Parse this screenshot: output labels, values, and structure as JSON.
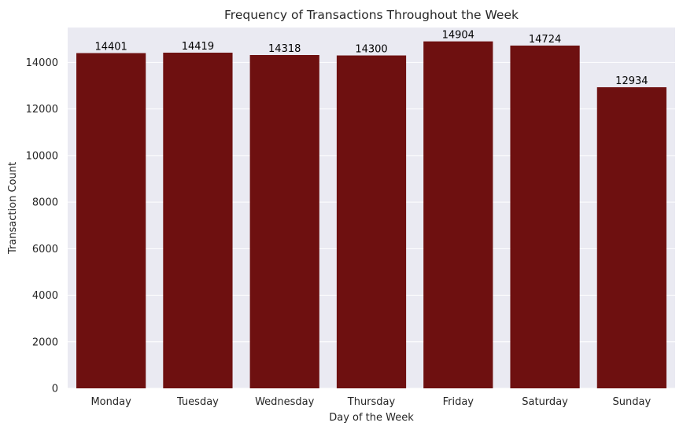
{
  "chart_data": {
    "type": "bar",
    "title": "Frequency of Transactions Throughout the Week",
    "xlabel": "Day of the Week",
    "ylabel": "Transaction Count",
    "categories": [
      "Monday",
      "Tuesday",
      "Wednesday",
      "Thursday",
      "Friday",
      "Saturday",
      "Sunday"
    ],
    "values": [
      14401,
      14419,
      14318,
      14300,
      14904,
      14724,
      12934
    ],
    "data_labels": [
      "14401",
      "14419",
      "14318",
      "14300",
      "14904",
      "14724",
      "12934"
    ],
    "ylim": [
      0,
      15500
    ],
    "yticks": [
      0,
      2000,
      4000,
      6000,
      8000,
      10000,
      12000,
      14000
    ],
    "ytick_labels": [
      "0",
      "2000",
      "4000",
      "6000",
      "8000",
      "10000",
      "12000",
      "14000"
    ],
    "grid": true,
    "colors": {
      "bar": "#6e1010",
      "plot_background": "#eaeaf2",
      "grid": "#ffffff"
    }
  }
}
